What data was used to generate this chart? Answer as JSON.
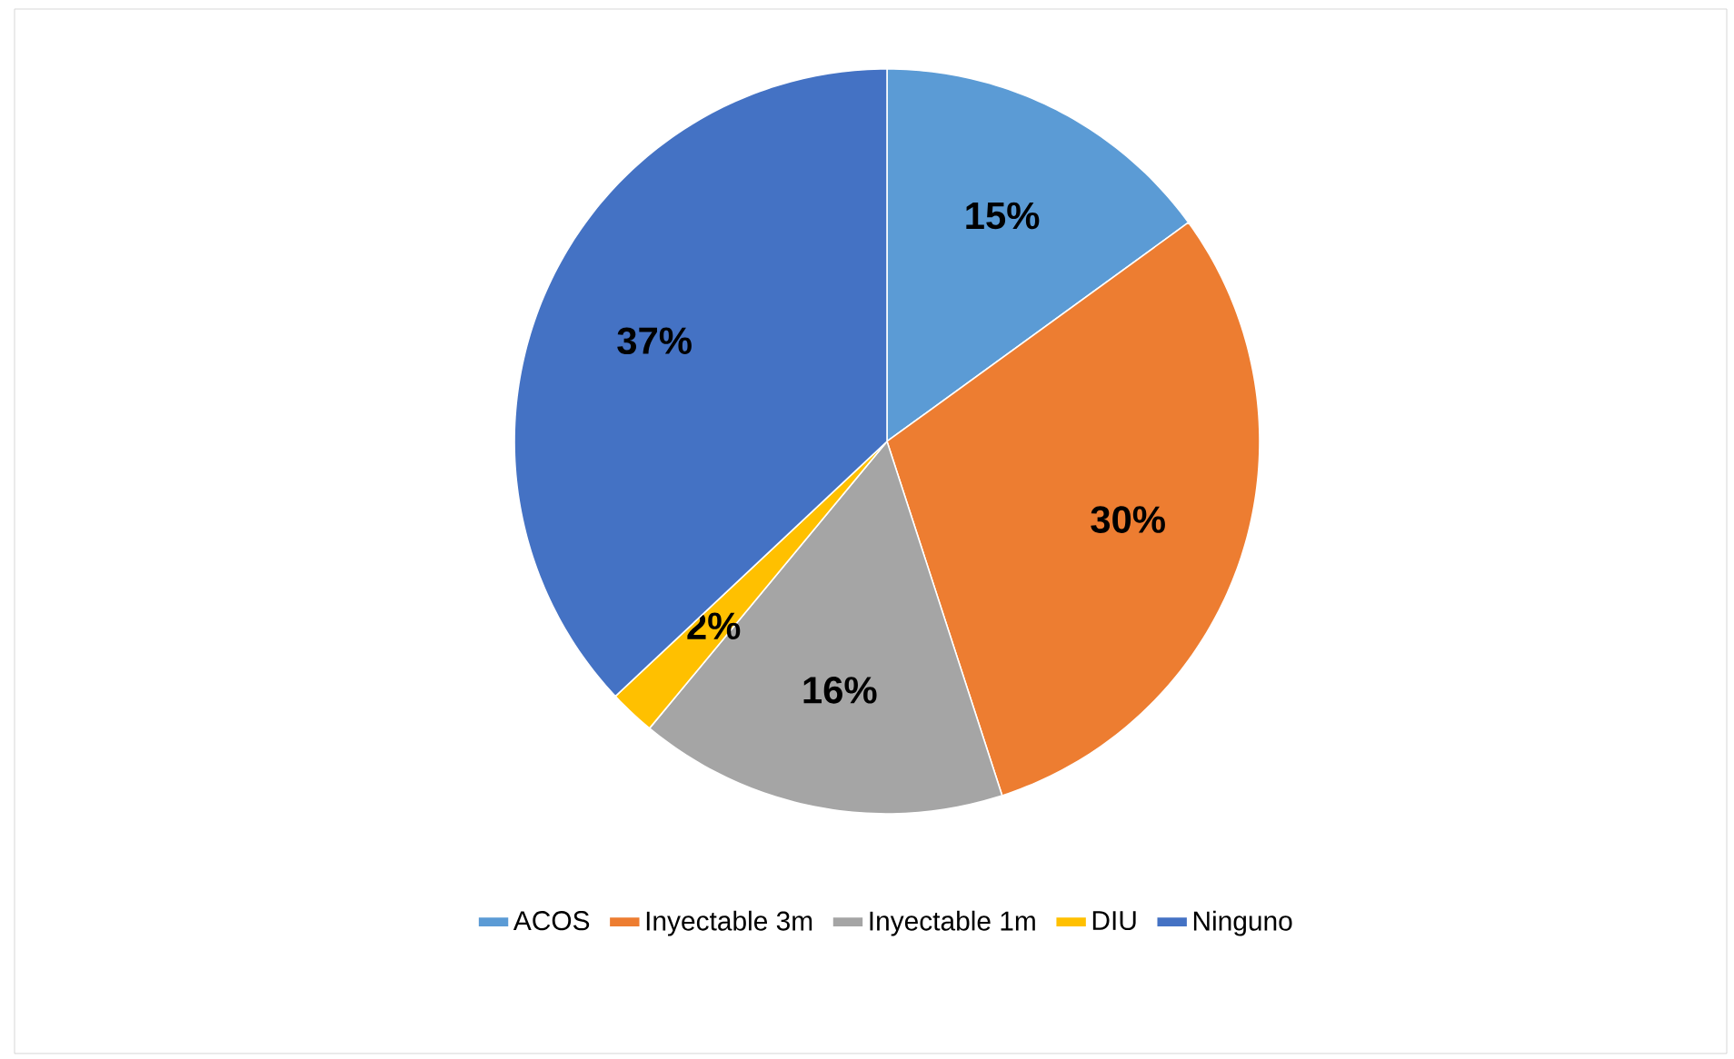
{
  "chart_data": {
    "type": "pie",
    "categories": [
      "ACOS",
      "Inyectable 3m",
      "Inyectable 1m",
      "DIU",
      "Ninguno"
    ],
    "values": [
      15,
      30,
      16,
      2,
      37
    ],
    "value_labels": [
      "15%",
      "30%",
      "16%",
      "2%",
      "37%"
    ],
    "colors": [
      "#5b9bd5",
      "#ed7d31",
      "#a5a5a5",
      "#ffc000",
      "#4472c4"
    ],
    "legend": "bottom"
  }
}
